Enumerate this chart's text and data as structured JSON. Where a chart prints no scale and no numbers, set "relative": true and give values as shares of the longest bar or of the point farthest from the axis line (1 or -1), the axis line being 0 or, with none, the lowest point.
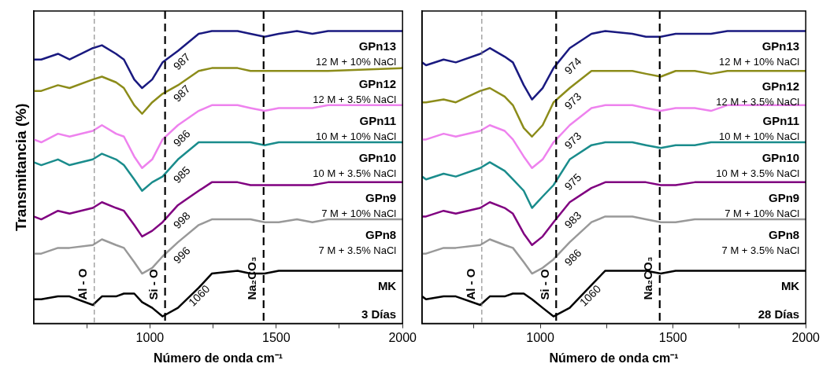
{
  "chart_data": [
    {
      "type": "line",
      "relative": true,
      "ylabel": "Transmitancia (%)",
      "xlabel": "Número de onda cm⁻¹",
      "xlim": [
        540,
        2000
      ],
      "xticks": [
        {
          "value": 750,
          "label": null
        },
        1000,
        {
          "value": 1250,
          "label": null
        },
        1500,
        {
          "value": 1750,
          "label": null
        },
        2000
      ],
      "x": [
        540,
        570,
        636,
        682,
        774,
        810,
        866,
        897,
        938,
        969,
        1009,
        1050,
        1111,
        1193,
        1245,
        1347,
        1398,
        1454,
        1510,
        1582,
        1643,
        1705,
        2000
      ],
      "series": [
        {
          "name": "GPn13",
          "color": "#1a1a80",
          "values": [
            0.9,
            0.9,
            0.92,
            0.9,
            0.94,
            0.95,
            0.92,
            0.9,
            0.83,
            0.8,
            0.83,
            0.89,
            0.93,
            0.99,
            1.0,
            1.0,
            0.99,
            0.98,
            0.99,
            1.0,
            0.99,
            1.0,
            1.0
          ]
        },
        {
          "name": "GPn12",
          "color": "#8c8c1a",
          "values": [
            0.79,
            0.79,
            0.81,
            0.8,
            0.83,
            0.84,
            0.82,
            0.8,
            0.74,
            0.71,
            0.75,
            0.78,
            0.81,
            0.86,
            0.87,
            0.87,
            0.86,
            0.86,
            0.86,
            0.86,
            0.86,
            0.86,
            0.87
          ]
        },
        {
          "name": "GPn11",
          "color": "#ee82ee",
          "values": [
            0.62,
            0.61,
            0.64,
            0.63,
            0.65,
            0.67,
            0.64,
            0.63,
            0.56,
            0.52,
            0.55,
            0.62,
            0.67,
            0.72,
            0.74,
            0.74,
            0.73,
            0.72,
            0.73,
            0.73,
            0.73,
            0.74,
            0.74
          ]
        },
        {
          "name": "GPn10",
          "color": "#1a8c8c",
          "values": [
            0.54,
            0.53,
            0.55,
            0.53,
            0.55,
            0.57,
            0.55,
            0.53,
            0.48,
            0.44,
            0.47,
            0.49,
            0.55,
            0.61,
            0.61,
            0.61,
            0.61,
            0.6,
            0.61,
            0.61,
            0.61,
            0.61,
            0.61
          ]
        },
        {
          "name": "GPn9",
          "color": "#800080",
          "values": [
            0.35,
            0.34,
            0.37,
            0.36,
            0.38,
            0.4,
            0.38,
            0.37,
            0.32,
            0.28,
            0.3,
            0.33,
            0.39,
            0.44,
            0.47,
            0.47,
            0.46,
            0.46,
            0.46,
            0.46,
            0.46,
            0.47,
            0.47
          ]
        },
        {
          "name": "GPn8",
          "color": "#999999",
          "values": [
            0.22,
            0.22,
            0.24,
            0.24,
            0.25,
            0.27,
            0.25,
            0.24,
            0.19,
            0.15,
            0.17,
            0.21,
            0.26,
            0.32,
            0.34,
            0.34,
            0.34,
            0.33,
            0.33,
            0.34,
            0.33,
            0.34,
            0.34
          ]
        },
        {
          "name": "MK",
          "color": "#000000",
          "values": [
            0.06,
            0.06,
            0.07,
            0.07,
            0.04,
            0.07,
            0.07,
            0.08,
            0.08,
            0.05,
            0.03,
            0.0,
            0.03,
            0.1,
            0.15,
            0.16,
            0.15,
            0.15,
            0.16,
            0.16,
            0.16,
            0.16,
            0.16
          ]
        }
      ],
      "ref_lines": [
        {
          "axis": "x",
          "value": 780,
          "label": "Al - O",
          "color": "#777777",
          "line_style": "dashed"
        },
        {
          "axis": "x",
          "value": 1060,
          "label": "Si - O",
          "color": "#000000",
          "line_style": "dashed"
        },
        {
          "axis": "x",
          "value": 1450,
          "label": "Na₂CO₃",
          "color": "#000000",
          "line_style": "dashed"
        }
      ],
      "annotations": [
        "12 M + 10% NaCl",
        "12 M + 3.5% NaCl",
        "10 M + 10% NaCl",
        "10 M + 3.5% NaCl",
        "7 M + 10% NaCl",
        "7 M + 3.5% NaCl",
        "3 Días",
        "987",
        "987",
        "986",
        "985",
        "998",
        "996",
        "1060"
      ]
    },
    {
      "type": "line",
      "relative": true,
      "xlabel": "Número de onda cm⁻¹",
      "xlim": [
        555,
        2000
      ],
      "xticks": [
        {
          "value": 750,
          "label": null
        },
        1000,
        {
          "value": 1250,
          "label": null
        },
        1500,
        {
          "value": 1750,
          "label": null
        },
        2000
      ],
      "x": [
        555,
        570,
        636,
        682,
        774,
        810,
        866,
        897,
        938,
        969,
        1009,
        1050,
        1111,
        1193,
        1245,
        1347,
        1398,
        1454,
        1510,
        1582,
        1643,
        1705,
        2000
      ],
      "series": [
        {
          "name": "GPn13",
          "color": "#1a1a80",
          "values": [
            0.89,
            0.88,
            0.9,
            0.89,
            0.92,
            0.94,
            0.91,
            0.89,
            0.81,
            0.76,
            0.8,
            0.87,
            0.94,
            0.99,
            1.0,
            0.99,
            0.98,
            0.98,
            0.99,
            0.99,
            0.99,
            1.0,
            1.0
          ]
        },
        {
          "name": "GPn12",
          "color": "#8c8c1a",
          "values": [
            0.75,
            0.75,
            0.76,
            0.75,
            0.79,
            0.8,
            0.77,
            0.74,
            0.66,
            0.63,
            0.67,
            0.75,
            0.8,
            0.86,
            0.86,
            0.86,
            0.85,
            0.84,
            0.86,
            0.86,
            0.85,
            0.86,
            0.86
          ]
        },
        {
          "name": "GPn11",
          "color": "#ee82ee",
          "values": [
            0.62,
            0.62,
            0.64,
            0.63,
            0.65,
            0.67,
            0.65,
            0.62,
            0.56,
            0.52,
            0.55,
            0.61,
            0.67,
            0.73,
            0.74,
            0.74,
            0.73,
            0.72,
            0.73,
            0.73,
            0.72,
            0.74,
            0.74
          ]
        },
        {
          "name": "GPn10",
          "color": "#1a8c8c",
          "values": [
            0.49,
            0.48,
            0.5,
            0.49,
            0.52,
            0.54,
            0.51,
            0.48,
            0.44,
            0.38,
            0.42,
            0.46,
            0.55,
            0.6,
            0.61,
            0.61,
            0.6,
            0.59,
            0.6,
            0.6,
            0.61,
            0.61,
            0.61
          ]
        },
        {
          "name": "GPn9",
          "color": "#800080",
          "values": [
            0.35,
            0.35,
            0.37,
            0.36,
            0.38,
            0.4,
            0.38,
            0.36,
            0.29,
            0.25,
            0.28,
            0.33,
            0.4,
            0.45,
            0.47,
            0.47,
            0.47,
            0.46,
            0.46,
            0.47,
            0.47,
            0.47,
            0.47
          ]
        },
        {
          "name": "GPn8",
          "color": "#999999",
          "values": [
            0.22,
            0.22,
            0.24,
            0.24,
            0.25,
            0.27,
            0.25,
            0.24,
            0.19,
            0.15,
            0.17,
            0.2,
            0.26,
            0.33,
            0.35,
            0.35,
            0.34,
            0.33,
            0.33,
            0.34,
            0.34,
            0.34,
            0.34
          ]
        },
        {
          "name": "MK",
          "color": "#000000",
          "values": [
            0.07,
            0.06,
            0.07,
            0.07,
            0.04,
            0.07,
            0.07,
            0.08,
            0.08,
            0.06,
            0.03,
            0.0,
            0.03,
            0.11,
            0.16,
            0.16,
            0.16,
            0.15,
            0.16,
            0.16,
            0.16,
            0.16,
            0.16
          ]
        }
      ],
      "ref_lines": [
        {
          "axis": "x",
          "value": 780,
          "label": "Al - O",
          "color": "#777777",
          "line_style": "dashed"
        },
        {
          "axis": "x",
          "value": 1060,
          "label": "Si - O",
          "color": "#000000",
          "line_style": "dashed"
        },
        {
          "axis": "x",
          "value": 1450,
          "label": "Na₂CO₃",
          "color": "#000000",
          "line_style": "dashed"
        }
      ],
      "annotations": [
        "12 M + 10% NaCl",
        "12 M + 3.5% NaCl",
        "10 M + 10% NaCl",
        "10 M + 3.5% NaCl",
        "7 M + 10% NaCl",
        "7 M + 3.5% NaCl",
        "28 Días",
        "974",
        "973",
        "973",
        "975",
        "983",
        "986",
        "1060"
      ]
    }
  ]
}
